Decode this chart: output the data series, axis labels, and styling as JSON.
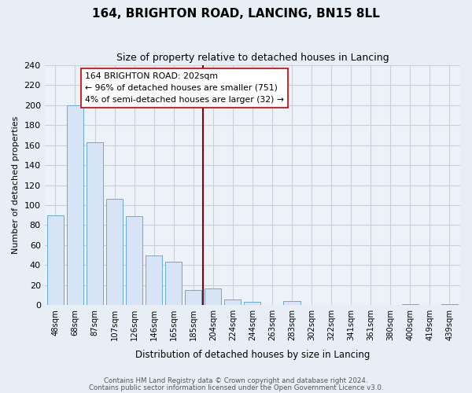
{
  "title": "164, BRIGHTON ROAD, LANCING, BN15 8LL",
  "subtitle": "Size of property relative to detached houses in Lancing",
  "xlabel": "Distribution of detached houses by size in Lancing",
  "ylabel": "Number of detached properties",
  "bar_labels": [
    "48sqm",
    "68sqm",
    "87sqm",
    "107sqm",
    "126sqm",
    "146sqm",
    "165sqm",
    "185sqm",
    "204sqm",
    "224sqm",
    "244sqm",
    "263sqm",
    "283sqm",
    "302sqm",
    "322sqm",
    "341sqm",
    "361sqm",
    "380sqm",
    "400sqm",
    "419sqm",
    "439sqm"
  ],
  "bar_values": [
    90,
    200,
    163,
    106,
    89,
    50,
    43,
    15,
    17,
    6,
    3,
    0,
    4,
    0,
    0,
    0,
    0,
    0,
    1,
    0,
    1
  ],
  "bar_color": "#d6e4f5",
  "bar_edge_color": "#6aaad4",
  "vline_x_idx": 8,
  "vline_color": "#8b0000",
  "annotation_line1": "164 BRIGHTON ROAD: 202sqm",
  "annotation_line2": "← 96% of detached houses are smaller (751)",
  "annotation_line3": "4% of semi-detached houses are larger (32) →",
  "annotation_box_color": "#ffffff",
  "annotation_box_edge": "#cc0000",
  "ylim": [
    0,
    240
  ],
  "yticks": [
    0,
    20,
    40,
    60,
    80,
    100,
    120,
    140,
    160,
    180,
    200,
    220,
    240
  ],
  "footer1": "Contains HM Land Registry data © Crown copyright and database right 2024.",
  "footer2": "Contains public sector information licensed under the Open Government Licence v3.0.",
  "fig_bg_color": "#e8eef6",
  "plot_bg_color": "#edf2f9",
  "grid_color": "#c8d0dc"
}
